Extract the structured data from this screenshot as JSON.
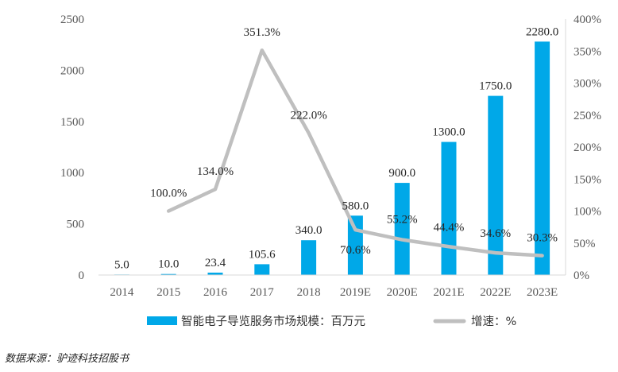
{
  "chart_data": {
    "type": "bar",
    "categories": [
      "2014",
      "2015",
      "2016",
      "2017",
      "2018",
      "2019E",
      "2020E",
      "2021E",
      "2022E",
      "2023E"
    ],
    "series": [
      {
        "name": "智能电子导览服务市场规模：百万元",
        "type": "bar",
        "axis": "left",
        "color": "#00A8E8",
        "values": [
          5.0,
          10.0,
          23.4,
          105.6,
          340.0,
          580.0,
          900.0,
          1300.0,
          1750.0,
          2280.0
        ],
        "labels": [
          "5.0",
          "10.0",
          "23.4",
          "105.6",
          "340.0",
          "580.0",
          "900.0",
          "1300.0",
          "1750.0",
          "2280.0"
        ]
      },
      {
        "name": "增速：%",
        "type": "line",
        "axis": "right",
        "color": "#BFBFBF",
        "values": [
          null,
          100.0,
          134.0,
          351.3,
          222.0,
          70.6,
          55.2,
          44.4,
          34.6,
          30.3
        ],
        "labels": [
          "",
          "100.0%",
          "134.0%",
          "351.3%",
          "222.0%",
          "70.6%",
          "55.2%",
          "44.4%",
          "34.6%",
          "30.3%"
        ]
      }
    ],
    "y_left": {
      "ticks": [
        "0",
        "500",
        "1000",
        "1500",
        "2000",
        "2500"
      ],
      "ylim": [
        0,
        2500
      ]
    },
    "y_right": {
      "ticks": [
        "0%",
        "50%",
        "100%",
        "150%",
        "200%",
        "250%",
        "300%",
        "350%",
        "400%"
      ],
      "ylim": [
        0,
        400
      ]
    },
    "grid": false,
    "legend_position": "bottom"
  },
  "source_text": "数据来源：驴迹科技招股书"
}
